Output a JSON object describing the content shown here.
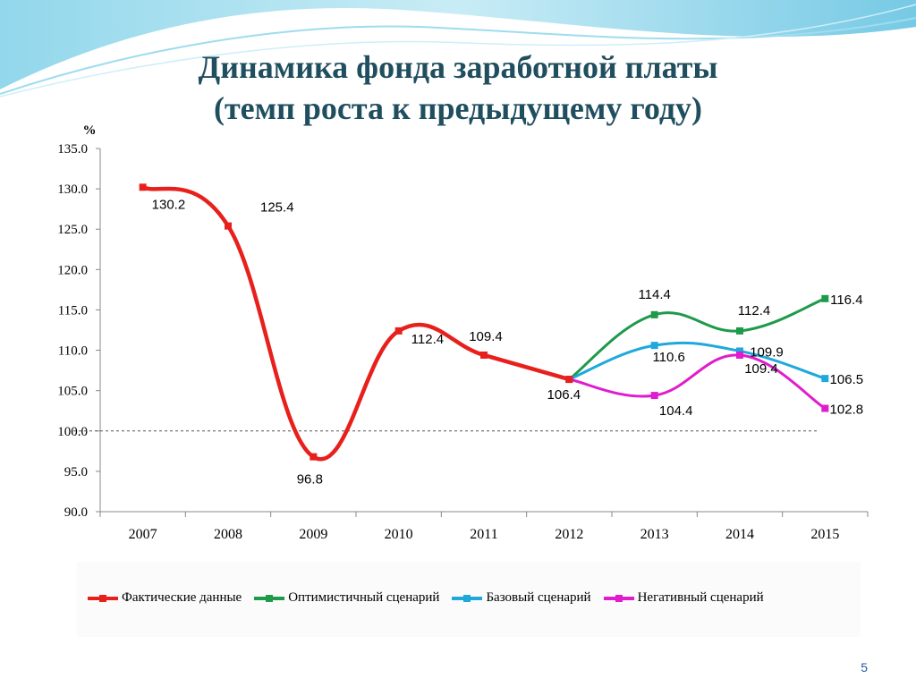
{
  "title_line1": "Динамика фонда заработной платы",
  "title_line2": "(темп роста к предыдущему году)",
  "page_number": "5",
  "colors": {
    "actual": "#e8201c",
    "optimistic": "#1e9a4a",
    "base": "#1ea8dc",
    "negative": "#e01ccc",
    "title": "#1f4e5f"
  },
  "chart_data": {
    "type": "line",
    "ylabel": "%",
    "ylim": [
      90,
      135
    ],
    "yticks": [
      "135.0",
      "130.0",
      "125.0",
      "120.0",
      "115.0",
      "110.0",
      "105.0",
      "100.0",
      "95.0",
      "90.0"
    ],
    "ytick_values": [
      135,
      130,
      125,
      120,
      115,
      110,
      105,
      100,
      95,
      90
    ],
    "categories": [
      "2007",
      "2008",
      "2009",
      "2010",
      "2011",
      "2012",
      "2013",
      "2014",
      "2015"
    ],
    "reference_line": 100,
    "series": [
      {
        "name": "Фактические данные",
        "key": "actual",
        "x": [
          "2007",
          "2008",
          "2009",
          "2010",
          "2011",
          "2012"
        ],
        "values": [
          130.2,
          125.4,
          96.8,
          112.4,
          109.4,
          106.4
        ],
        "labels": [
          "130.2",
          "125.4",
          "96.8",
          "112.4",
          "109.4",
          "106.4"
        ]
      },
      {
        "name": "Оптимистичный сценарий",
        "key": "optimistic",
        "x": [
          "2012",
          "2013",
          "2014",
          "2015"
        ],
        "values": [
          106.4,
          114.4,
          112.4,
          116.4
        ],
        "labels": [
          "",
          "114.4",
          "112.4",
          "116.4"
        ]
      },
      {
        "name": "Базовый сценарий",
        "key": "base",
        "x": [
          "2012",
          "2013",
          "2014",
          "2015"
        ],
        "values": [
          106.4,
          110.6,
          109.9,
          106.5
        ],
        "labels": [
          "",
          "110.6",
          "109.9",
          "106.5"
        ]
      },
      {
        "name": "Негативный сценарий",
        "key": "negative",
        "x": [
          "2012",
          "2013",
          "2014",
          "2015"
        ],
        "values": [
          106.4,
          104.4,
          109.4,
          102.8
        ],
        "labels": [
          "",
          "104.4",
          "109.4",
          "102.8"
        ]
      }
    ]
  }
}
